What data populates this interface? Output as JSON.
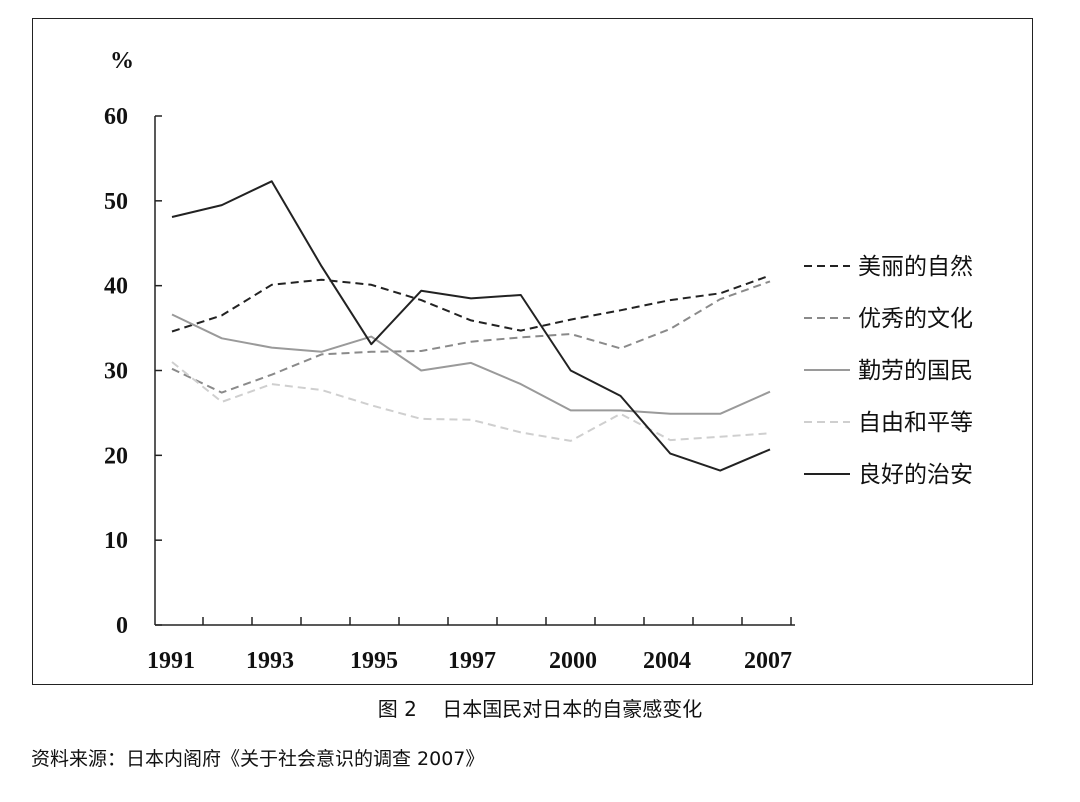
{
  "caption": {
    "figure_no": "图 2",
    "title": "日本国民对日本的自豪感变化"
  },
  "source_note": "资料来源：日本内阁府《关于社会意识的调查 2007》",
  "chart_data": {
    "type": "line",
    "ylabel": "%",
    "ylim": [
      0,
      60
    ],
    "yticks": [
      "0",
      "10",
      "20",
      "30",
      "40",
      "50",
      "60"
    ],
    "xlabels": [
      "1991",
      "1993",
      "1995",
      "1997",
      "2000",
      "2004",
      "2007"
    ],
    "grid": false,
    "legend_position": "right",
    "x": [
      0,
      1,
      2,
      3,
      4,
      5,
      6,
      7,
      8,
      9,
      10,
      11,
      12
    ],
    "series": [
      {
        "name": "美丽的自然",
        "style": "dashed",
        "color": "#222222",
        "values": [
          34.6,
          36.5,
          40.1,
          40.7,
          40.1,
          38.3,
          35.9,
          34.7,
          36.0,
          37.1,
          38.3,
          39.1,
          41.2
        ]
      },
      {
        "name": "优秀的文化",
        "style": "dashed",
        "color": "#8a8a8a",
        "values": [
          30.2,
          27.4,
          29.5,
          31.9,
          32.2,
          32.3,
          33.4,
          33.9,
          34.3,
          32.6,
          34.9,
          38.4,
          40.5
        ]
      },
      {
        "name": "勤劳的国民",
        "style": "solid",
        "color": "#9a9a9a",
        "values": [
          36.6,
          33.8,
          32.7,
          32.2,
          34.0,
          30.0,
          30.9,
          28.4,
          25.3,
          25.3,
          24.9,
          24.9,
          27.5
        ]
      },
      {
        "name": "自由和平等",
        "style": "dashed",
        "color": "#cfcfcf",
        "values": [
          31.0,
          26.3,
          28.4,
          27.7,
          25.9,
          24.3,
          24.2,
          22.7,
          21.7,
          24.9,
          21.8,
          22.2,
          22.6
        ]
      },
      {
        "name": "良好的治安",
        "style": "solid",
        "color": "#222222",
        "values": [
          48.1,
          49.5,
          52.3,
          42.3,
          33.1,
          39.4,
          38.5,
          38.9,
          30.0,
          27.0,
          20.2,
          18.2,
          20.7
        ]
      }
    ]
  }
}
